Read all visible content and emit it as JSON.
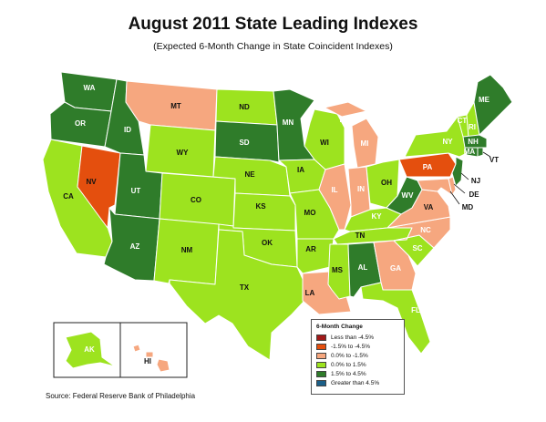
{
  "header": {
    "title": "August 2011 State Leading Indexes",
    "subtitle": "(Expected 6-Month Change in State Coincident Indexes)"
  },
  "legend": {
    "title": "6-Month Change",
    "items": [
      {
        "label": "Less than -4.5%",
        "color": "#a11a1a"
      },
      {
        "label": "-1.5% to -4.5%",
        "color": "#e44f0e"
      },
      {
        "label": "0.0% to -1.5%",
        "color": "#f6a77f"
      },
      {
        "label": "0.0% to  1.5%",
        "color": "#9de31f"
      },
      {
        "label": "1.5% to  4.5%",
        "color": "#2f7c2a"
      },
      {
        "label": "Greater than 4.5%",
        "color": "#1b5f88"
      }
    ]
  },
  "source": "Source: Federal Reserve Bank of Philadelphia",
  "palette": {
    "neg_high": "#e44f0e",
    "neg_low": "#f6a77f",
    "pos_low": "#9de31f",
    "pos_mid": "#2f7c2a"
  },
  "states": [
    {
      "id": "WA",
      "label": "WA",
      "category": "1.5% to  4.5%"
    },
    {
      "id": "OR",
      "label": "OR",
      "category": "1.5% to  4.5%"
    },
    {
      "id": "CA",
      "label": "CA",
      "category": "0.0% to  1.5%"
    },
    {
      "id": "NV",
      "label": "NV",
      "category": "-1.5% to -4.5%"
    },
    {
      "id": "ID",
      "label": "ID",
      "category": "1.5% to  4.5%"
    },
    {
      "id": "MT",
      "label": "MT",
      "category": "0.0% to -1.5%"
    },
    {
      "id": "WY",
      "label": "WY",
      "category": "0.0% to  1.5%"
    },
    {
      "id": "UT",
      "label": "UT",
      "category": "1.5% to  4.5%"
    },
    {
      "id": "AZ",
      "label": "AZ",
      "category": "1.5% to  4.5%"
    },
    {
      "id": "CO",
      "label": "CO",
      "category": "0.0% to  1.5%"
    },
    {
      "id": "NM",
      "label": "NM",
      "category": "0.0% to  1.5%"
    },
    {
      "id": "ND",
      "label": "ND",
      "category": "0.0% to  1.5%"
    },
    {
      "id": "SD",
      "label": "SD",
      "category": "1.5% to  4.5%"
    },
    {
      "id": "NE",
      "label": "NE",
      "category": "0.0% to  1.5%"
    },
    {
      "id": "KS",
      "label": "KS",
      "category": "0.0% to  1.5%"
    },
    {
      "id": "OK",
      "label": "OK",
      "category": "0.0% to  1.5%"
    },
    {
      "id": "TX",
      "label": "TX",
      "category": "0.0% to  1.5%"
    },
    {
      "id": "MN",
      "label": "MN",
      "category": "1.5% to  4.5%"
    },
    {
      "id": "IA",
      "label": "IA",
      "category": "0.0% to  1.5%"
    },
    {
      "id": "MO",
      "label": "MO",
      "category": "0.0% to  1.5%"
    },
    {
      "id": "AR",
      "label": "AR",
      "category": "0.0% to  1.5%"
    },
    {
      "id": "LA",
      "label": "LA",
      "category": "0.0% to -1.5%"
    },
    {
      "id": "WI",
      "label": "WI",
      "category": "0.0% to  1.5%"
    },
    {
      "id": "IL",
      "label": "IL",
      "category": "0.0% to -1.5%"
    },
    {
      "id": "MI",
      "label": "MI",
      "category": "0.0% to -1.5%"
    },
    {
      "id": "IN",
      "label": "IN",
      "category": "0.0% to -1.5%"
    },
    {
      "id": "OH",
      "label": "OH",
      "category": "0.0% to  1.5%"
    },
    {
      "id": "KY",
      "label": "KY",
      "category": "0.0% to  1.5%"
    },
    {
      "id": "TN",
      "label": "TN",
      "category": "0.0% to  1.5%"
    },
    {
      "id": "MS",
      "label": "MS",
      "category": "0.0% to  1.5%"
    },
    {
      "id": "AL",
      "label": "AL",
      "category": "1.5% to  4.5%"
    },
    {
      "id": "GA",
      "label": "GA",
      "category": "0.0% to -1.5%"
    },
    {
      "id": "FL",
      "label": "FL",
      "category": "0.0% to  1.5%"
    },
    {
      "id": "SC",
      "label": "SC",
      "category": "0.0% to  1.5%"
    },
    {
      "id": "NC",
      "label": "NC",
      "category": "0.0% to -1.5%"
    },
    {
      "id": "VA",
      "label": "VA",
      "category": "0.0% to -1.5%"
    },
    {
      "id": "WV",
      "label": "WV",
      "category": "1.5% to  4.5%"
    },
    {
      "id": "MD",
      "label": "MD",
      "category": "0.0% to -1.5%"
    },
    {
      "id": "DE",
      "label": "DE",
      "category": "0.0% to -1.5%"
    },
    {
      "id": "PA",
      "label": "PA",
      "category": "-1.5% to -4.5%"
    },
    {
      "id": "NJ",
      "label": "NJ",
      "category": "1.5% to  4.5%"
    },
    {
      "id": "NY",
      "label": "NY",
      "category": "0.0% to  1.5%"
    },
    {
      "id": "CT",
      "label": "CT",
      "category": "1.5% to  4.5%"
    },
    {
      "id": "RI",
      "label": "RI",
      "category": "1.5% to  4.5%"
    },
    {
      "id": "MA",
      "label": "MA",
      "category": "1.5% to  4.5%"
    },
    {
      "id": "VT",
      "label": "VT",
      "category": "0.0% to  1.5%"
    },
    {
      "id": "NH",
      "label": "NH",
      "category": "0.0% to  1.5%"
    },
    {
      "id": "ME",
      "label": "ME",
      "category": "1.5% to  4.5%"
    },
    {
      "id": "AK",
      "label": "AK",
      "category": "0.0% to  1.5%"
    },
    {
      "id": "HI",
      "label": "HI",
      "category": "0.0% to -1.5%"
    }
  ]
}
